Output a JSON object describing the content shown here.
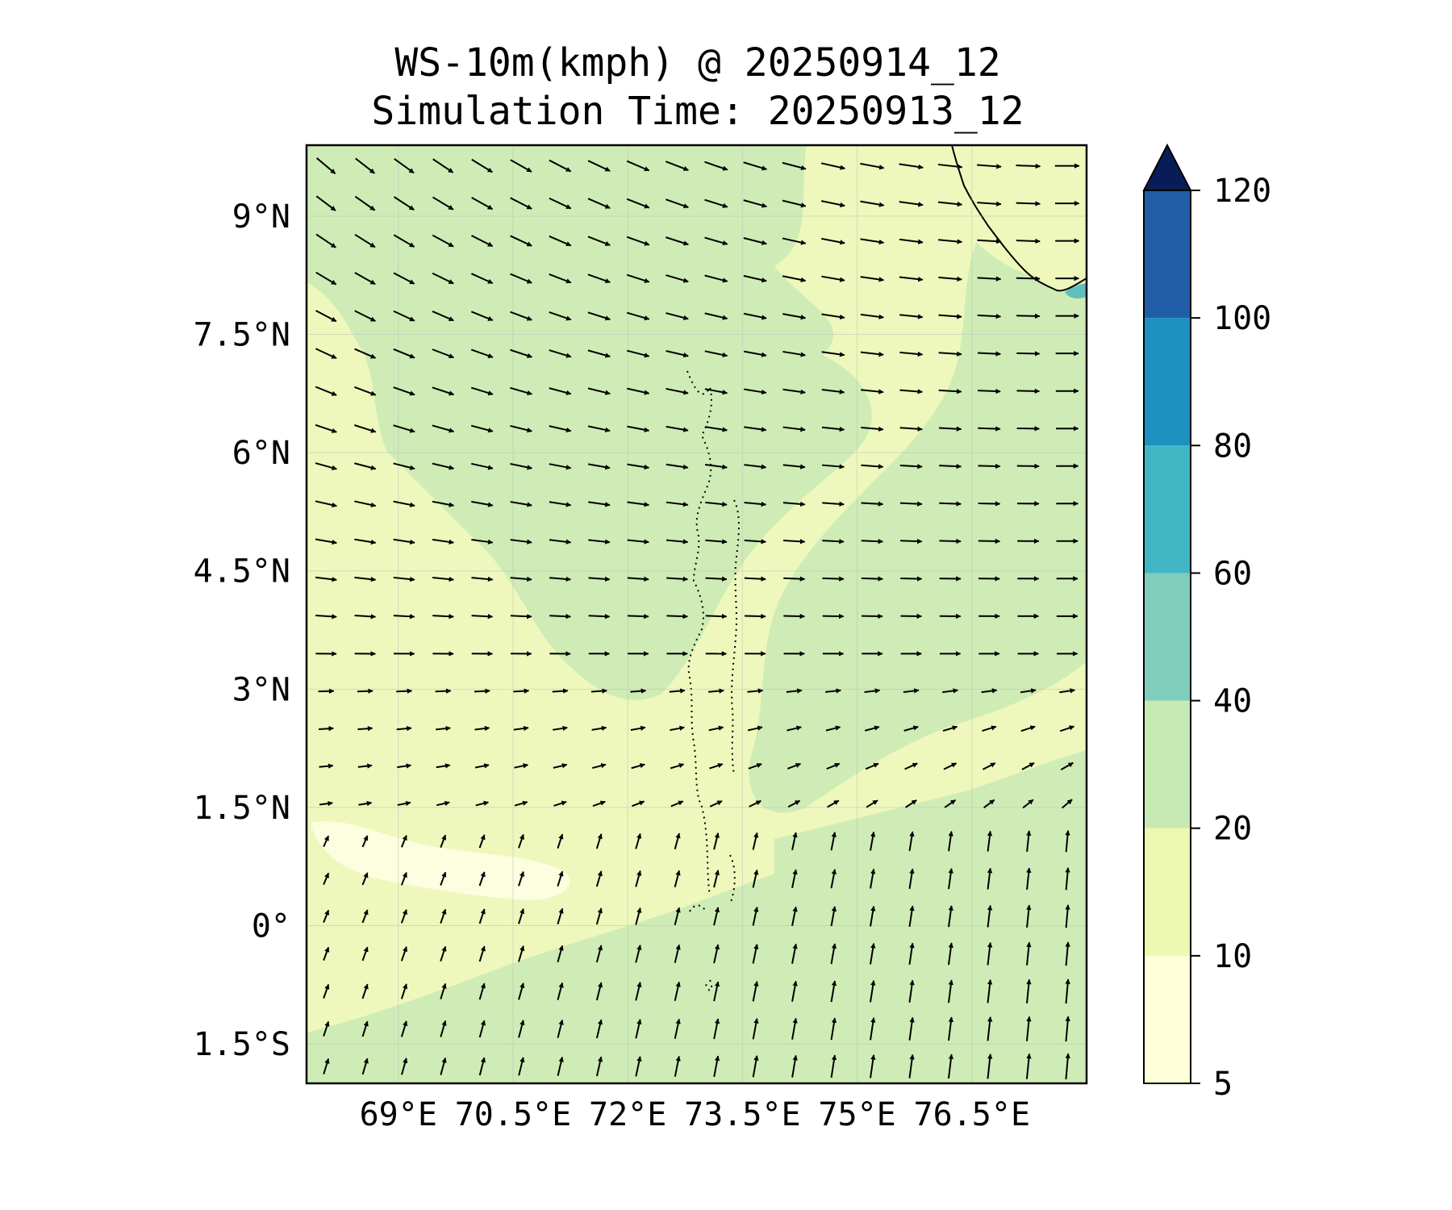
{
  "title": {
    "line1": "WS-10m(kmph) @ 20250914_12",
    "line2": "Simulation Time: 20250913_12"
  },
  "map": {
    "extent": {
      "lon_min": 67.8,
      "lon_max": 78.0,
      "lat_min": -2.0,
      "lat_max": 9.9
    },
    "lat_ticks": [
      {
        "value": 9,
        "label": "9°N"
      },
      {
        "value": 7.5,
        "label": "7.5°N"
      },
      {
        "value": 6,
        "label": "6°N"
      },
      {
        "value": 4.5,
        "label": "4.5°N"
      },
      {
        "value": 3,
        "label": "3°N"
      },
      {
        "value": 1.5,
        "label": "1.5°N"
      },
      {
        "value": 0,
        "label": "0°"
      },
      {
        "value": -1.5,
        "label": "1.5°S"
      }
    ],
    "lon_ticks": [
      {
        "value": 69,
        "label": "69°E"
      },
      {
        "value": 70.5,
        "label": "70.5°E"
      },
      {
        "value": 72,
        "label": "72°E"
      },
      {
        "value": 73.5,
        "label": "73.5°E"
      },
      {
        "value": 75,
        "label": "75°E"
      },
      {
        "value": 76.5,
        "label": "76.5°E"
      }
    ]
  },
  "colorbar": {
    "levels": [
      5,
      10,
      20,
      40,
      60,
      80,
      100,
      120
    ],
    "colors": [
      "#ffffd9",
      "#edf8b1",
      "#c7e9b4",
      "#7fcdbb",
      "#41b6c4",
      "#1d91c0",
      "#225ea8",
      "#081d58"
    ],
    "extend_color": "#081d58",
    "labels": [
      "5",
      "10",
      "20",
      "40",
      "60",
      "80",
      "100",
      "120"
    ]
  }
}
